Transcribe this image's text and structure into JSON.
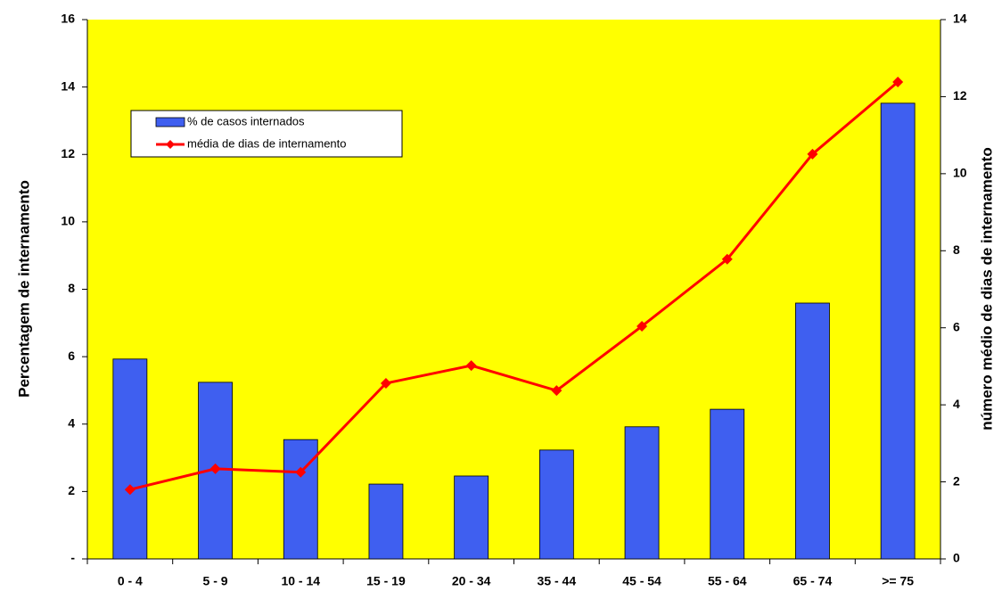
{
  "chart_data": {
    "type": "bar_line",
    "categories": [
      "0 - 4",
      "5 - 9",
      "10 - 14",
      "15 - 19",
      "20 - 34",
      "35 - 44",
      "45 - 54",
      "55 - 64",
      "65 - 74",
      ">= 75"
    ],
    "series": [
      {
        "name": "% de casos internados",
        "type": "bar",
        "color": "#3f5ff0",
        "values": [
          5.93,
          5.24,
          3.54,
          2.22,
          2.46,
          3.23,
          3.92,
          4.44,
          7.59,
          13.52
        ]
      },
      {
        "name": "média de dias de internamento",
        "type": "line",
        "axis": "y2",
        "color": "#ff0000",
        "values": [
          1.8,
          2.34,
          2.25,
          4.56,
          5.02,
          4.37,
          6.04,
          7.78,
          10.51,
          12.38
        ]
      }
    ],
    "ylabel": "Percentagem de internamento",
    "y2label": "número médio de dias de internamento",
    "ylim": [
      0,
      16
    ],
    "yticks": [
      {
        "value": 0,
        "label": "-"
      },
      2,
      4,
      6,
      8,
      10,
      12,
      14,
      16
    ],
    "y2lim": [
      0,
      14
    ],
    "y2ticks": [
      0,
      2,
      4,
      6,
      8,
      10,
      12,
      14
    ],
    "plot_background": "#ffff00"
  }
}
